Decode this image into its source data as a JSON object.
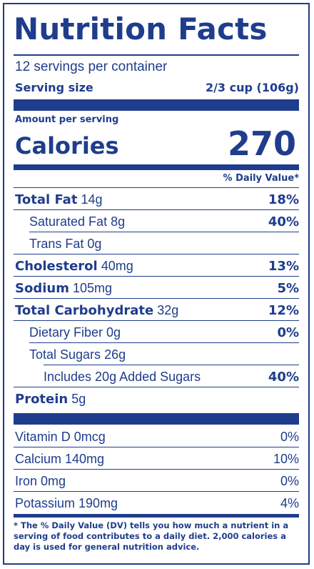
{
  "title": "Nutrition Facts",
  "servings_per_container": "12 servings per container",
  "serving_size_label": "Serving size",
  "serving_size_value": "2/3 cup (106g)",
  "amount_per_serving": "Amount per serving",
  "calories_label": "Calories",
  "calories_value": "270",
  "daily_value_header": "% Daily Value*",
  "nutrients": [
    {
      "name": "Total Fat",
      "amount": "14g",
      "dv": "18%"
    },
    {
      "name": "Saturated Fat",
      "amount": "8g",
      "dv": "40%"
    },
    {
      "name": "Trans Fat",
      "amount": "0g",
      "dv": ""
    },
    {
      "name": "Cholesterol",
      "amount": "40mg",
      "dv": "13%"
    },
    {
      "name": "Sodium",
      "amount": "105mg",
      "dv": "5%"
    },
    {
      "name": "Total Carbohydrate",
      "amount": "32g",
      "dv": "12%"
    },
    {
      "name": "Dietary Fiber",
      "amount": "0g",
      "dv": "0%"
    },
    {
      "name": "Total Sugars",
      "amount": "26g",
      "dv": ""
    },
    {
      "name": "Includes 20g Added Sugars",
      "amount": "",
      "dv": "40%"
    },
    {
      "name": "Protein",
      "amount": "5g",
      "dv": ""
    }
  ],
  "vitamins": [
    {
      "name": "Vitamin D 0mcg",
      "dv": "0%"
    },
    {
      "name": "Calcium 140mg",
      "dv": "10%"
    },
    {
      "name": "Iron 0mg",
      "dv": "0%"
    },
    {
      "name": "Potassium 190mg",
      "dv": "4%"
    }
  ],
  "footnote": "* The % Daily Value (DV) tells you how much a nutrient in a serving of food contributes to a daily diet. 2,000 calories a day is used for general nutrition advice.",
  "colors": {
    "ink": "#1f3d8c",
    "background": "#ffffff"
  }
}
